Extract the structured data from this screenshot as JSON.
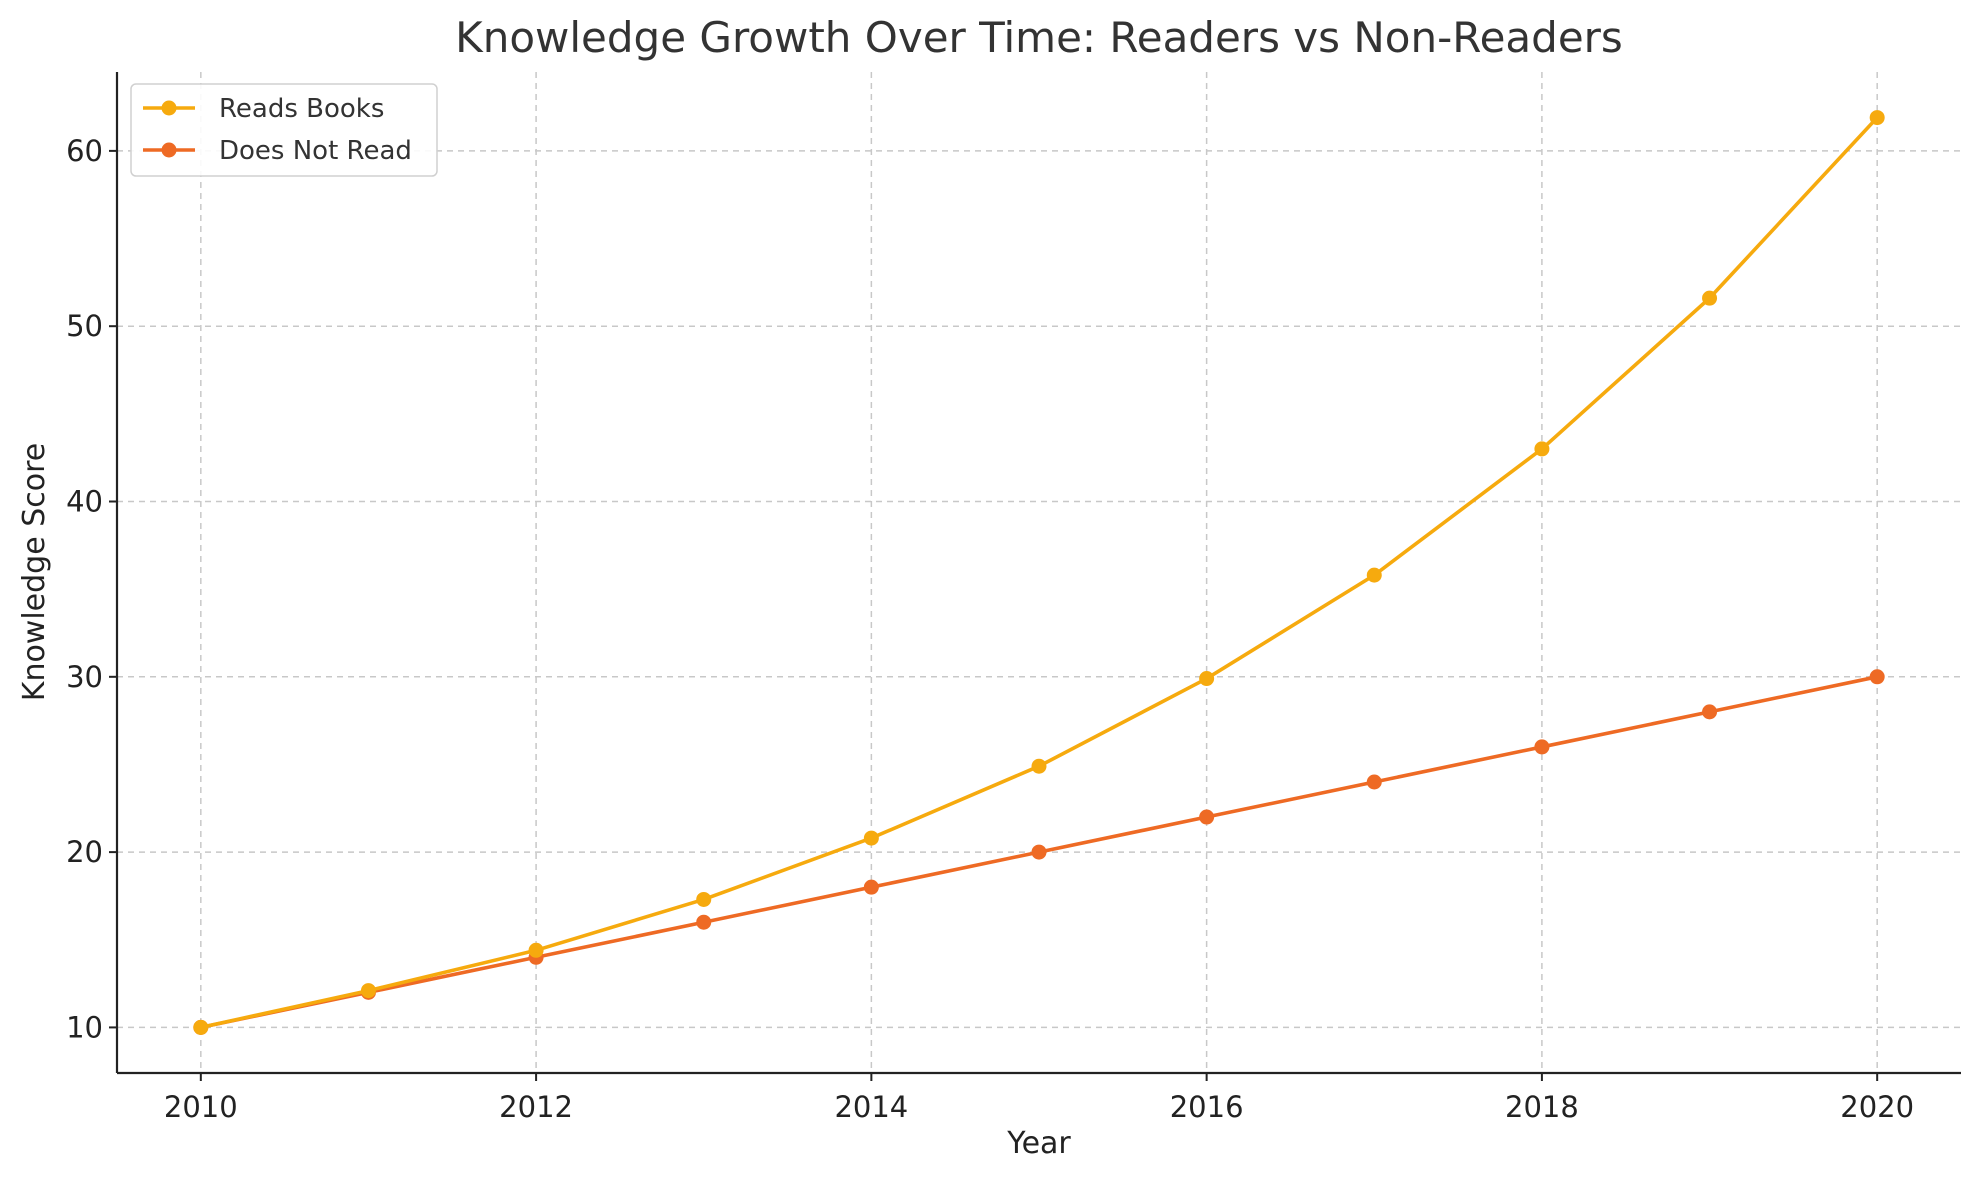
{
  "chart_data": {
    "type": "line",
    "title": "Knowledge Growth Over Time: Readers vs Non-Readers",
    "xlabel": "Year",
    "ylabel": "Knowledge Score",
    "x": [
      2010,
      2011,
      2012,
      2013,
      2014,
      2015,
      2016,
      2017,
      2018,
      2019,
      2020
    ],
    "x_ticks": [
      2010,
      2012,
      2014,
      2016,
      2018,
      2020
    ],
    "x_tick_labels": [
      "2010",
      "2012",
      "2014",
      "2016",
      "2018",
      "2020"
    ],
    "y_ticks": [
      10,
      20,
      30,
      40,
      50,
      60
    ],
    "y_tick_labels": [
      "10",
      "20",
      "30",
      "40",
      "50",
      "60"
    ],
    "xlim": [
      2009.5,
      2020.5
    ],
    "ylim": [
      7.4,
      64.5
    ],
    "grid": true,
    "legend_position": "top-left",
    "series": [
      {
        "name": "Reads Books",
        "color": "#F6AA0E",
        "values": [
          10.0,
          12.1,
          14.4,
          17.3,
          20.8,
          24.9,
          29.9,
          35.8,
          43.0,
          51.6,
          61.9
        ]
      },
      {
        "name": "Does Not Read",
        "color": "#EE6A24",
        "values": [
          10,
          12,
          14,
          16,
          18,
          20,
          22,
          24,
          26,
          28,
          30
        ]
      }
    ]
  }
}
